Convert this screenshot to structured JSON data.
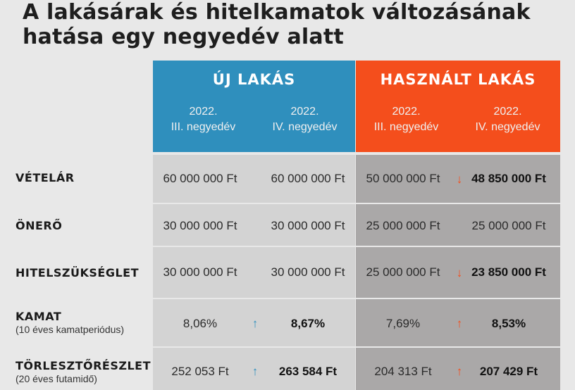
{
  "title": "A lakásárak és hitelkamatok változásának hatása egy negyedév alatt",
  "groups": {
    "new": {
      "label": "ÚJ LAKÁS",
      "color": "#2f8fbd"
    },
    "used": {
      "label": "HASZNÁLT LAKÁS",
      "color": "#f44e1c"
    }
  },
  "periods": {
    "q3": "2022.\nIII. negyedév",
    "q4": "2022.\nIV. negyedév"
  },
  "rows": [
    {
      "label": "VÉTELÁR",
      "sub": "",
      "new_q3": "60 000 000 Ft",
      "new_q4": "60 000 000 Ft",
      "used_q3": "50 000 000 Ft",
      "used_q4": "48 850 000 Ft",
      "new_arrow": "",
      "used_arrow": "↓"
    },
    {
      "label": "ÖNERŐ",
      "sub": "",
      "new_q3": "30 000 000 Ft",
      "new_q4": "30 000 000 Ft",
      "used_q3": "25 000 000 Ft",
      "used_q4": "25 000 000 Ft",
      "new_arrow": "",
      "used_arrow": ""
    },
    {
      "label": "HITELSZÜKSÉGLET",
      "sub": "",
      "new_q3": "30 000 000 Ft",
      "new_q4": "30 000 000 Ft",
      "used_q3": "25 000 000 Ft",
      "used_q4": "23 850 000 Ft",
      "new_arrow": "",
      "used_arrow": "↓"
    },
    {
      "label": "KAMAT",
      "sub": "(10 éves kamatperiódus)",
      "new_q3": "8,06%",
      "new_q4": "8,67%",
      "used_q3": "7,69%",
      "used_q4": "8,53%",
      "new_arrow": "↑",
      "used_arrow": "↑"
    },
    {
      "label": "TÖRLESZTŐRÉSZLET",
      "sub": "(20 éves futamidő)",
      "new_q3": "252 053 Ft",
      "new_q4": "263 584 Ft",
      "used_q3": "204 313 Ft",
      "used_q4": "207 429 Ft",
      "new_arrow": "↑",
      "used_arrow": "↑"
    }
  ]
}
